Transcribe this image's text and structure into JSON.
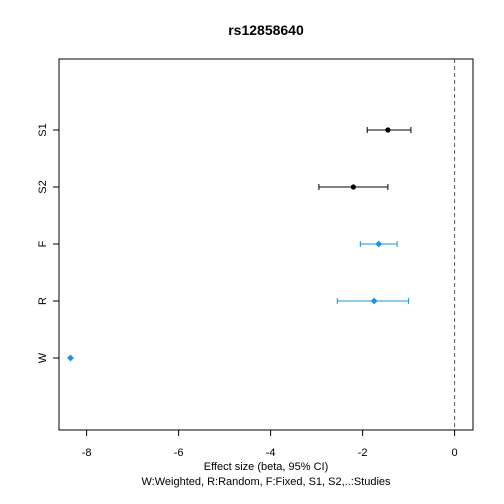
{
  "chart_data": {
    "type": "forest",
    "title": "rs12858640",
    "xlabel": "Effect size (beta, 95% CI)",
    "subtitle": "W:Weighted, R:Random, F:Fixed, S1, S2,..:Studies",
    "xlim": [
      -8.6,
      0.4
    ],
    "x_ticks": [
      -8,
      -6,
      -4,
      -2,
      0
    ],
    "reference_line": 0,
    "grid": false,
    "rows": [
      {
        "label": "S1",
        "estimate": -1.45,
        "lower": -1.9,
        "upper": -0.95,
        "marker": "circle",
        "color": "#000000"
      },
      {
        "label": "S2",
        "estimate": -2.2,
        "lower": -2.95,
        "upper": -1.45,
        "marker": "circle",
        "color": "#000000"
      },
      {
        "label": "F",
        "estimate": -1.65,
        "lower": -2.05,
        "upper": -1.25,
        "marker": "diamond",
        "color": "#1e90e0"
      },
      {
        "label": "R",
        "estimate": -1.75,
        "lower": -2.55,
        "upper": -1.0,
        "marker": "diamond",
        "color": "#1e90e0"
      },
      {
        "label": "W",
        "estimate": -8.35,
        "lower": null,
        "upper": null,
        "marker": "diamond",
        "color": "#1e90e0"
      }
    ]
  }
}
